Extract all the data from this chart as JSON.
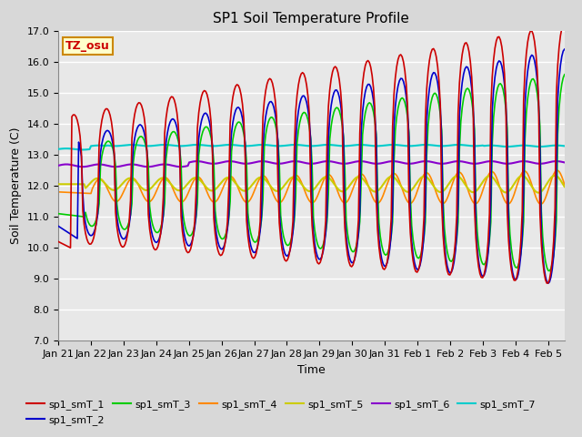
{
  "title": "SP1 Soil Temperature Profile",
  "xlabel": "Time",
  "ylabel": "Soil Temperature (C)",
  "ylim": [
    7.0,
    17.0
  ],
  "yticks": [
    7.0,
    8.0,
    9.0,
    10.0,
    11.0,
    12.0,
    13.0,
    14.0,
    15.0,
    16.0,
    17.0
  ],
  "tick_labels_x": [
    "Jan 21",
    "Jan 22",
    "Jan 23",
    "Jan 24",
    "Jan 25",
    "Jan 26",
    "Jan 27",
    "Jan 28",
    "Jan 29",
    "Jan 30",
    "Jan 31",
    "Feb 1",
    "Feb 2",
    "Feb 3",
    "Feb 4",
    "Feb 5"
  ],
  "series": {
    "sp1_smT_1": {
      "color": "#cc0000",
      "lw": 1.2
    },
    "sp1_smT_2": {
      "color": "#0000cc",
      "lw": 1.2
    },
    "sp1_smT_3": {
      "color": "#00cc00",
      "lw": 1.2
    },
    "sp1_smT_4": {
      "color": "#ff8800",
      "lw": 1.2
    },
    "sp1_smT_5": {
      "color": "#cccc00",
      "lw": 1.5
    },
    "sp1_smT_6": {
      "color": "#8800cc",
      "lw": 1.5
    },
    "sp1_smT_7": {
      "color": "#00cccc",
      "lw": 1.5
    }
  },
  "annotation_text": "TZ_osu",
  "annotation_color": "#cc0000",
  "annotation_bg": "#ffffcc",
  "annotation_border": "#cc8800",
  "plot_bg": "#e8e8e8",
  "grid_color": "#ffffff",
  "title_fontsize": 11,
  "axis_label_fontsize": 9,
  "tick_fontsize": 8,
  "legend_fontsize": 8
}
